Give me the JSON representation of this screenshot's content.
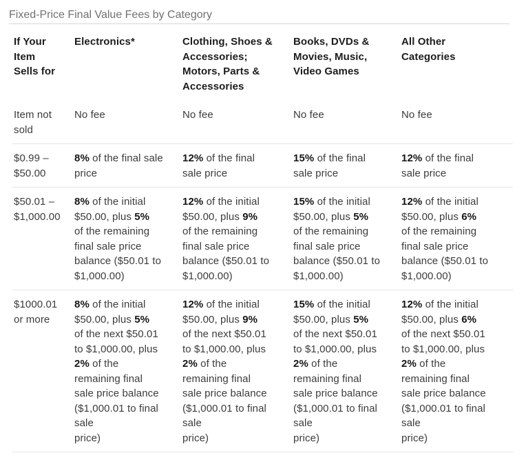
{
  "title": "Fixed-Price Final Value Fees by Category",
  "table": {
    "headers": [
      "If Your\nItem\nSells for",
      "Electronics*",
      "Clothing, Shoes &\nAccessories;\nMotors, Parts &\nAccessories",
      "Books, DVDs &\nMovies, Music,\nVideo Games",
      "All Other\nCategories"
    ],
    "rows": [
      {
        "range": "Item not\nsold",
        "cells": [
          [
            {
              "t": "No fee"
            }
          ],
          [
            {
              "t": "No fee"
            }
          ],
          [
            {
              "t": "No fee"
            }
          ],
          [
            {
              "t": "No fee"
            }
          ]
        ]
      },
      {
        "range": "$0.99 –\n$50.00",
        "cells": [
          [
            {
              "t": "8%",
              "b": true
            },
            {
              "t": " of the final sale\nprice"
            }
          ],
          [
            {
              "t": "12%",
              "b": true
            },
            {
              "t": " of the final\nsale price"
            }
          ],
          [
            {
              "t": "15%",
              "b": true
            },
            {
              "t": " of the final\nsale price"
            }
          ],
          [
            {
              "t": "12%",
              "b": true
            },
            {
              "t": " of the final\nsale price"
            }
          ]
        ]
      },
      {
        "range": "$50.01 –\n$1,000.00",
        "cells": [
          [
            {
              "t": "8%",
              "b": true
            },
            {
              "t": " of the initial\n$50.00, plus "
            },
            {
              "t": "5%",
              "b": true
            },
            {
              "t": "\nof the remaining\nfinal sale price\nbalance ($50.01 to\n$1,000.00)"
            }
          ],
          [
            {
              "t": "12%",
              "b": true
            },
            {
              "t": " of the initial\n$50.00, plus "
            },
            {
              "t": "9%",
              "b": true
            },
            {
              "t": "\nof the remaining\nfinal sale price\nbalance ($50.01 to\n$1,000.00)"
            }
          ],
          [
            {
              "t": "15%",
              "b": true
            },
            {
              "t": " of the initial\n$50.00, plus "
            },
            {
              "t": "5%",
              "b": true
            },
            {
              "t": "\nof the remaining\nfinal sale price\nbalance ($50.01 to\n$1,000.00)"
            }
          ],
          [
            {
              "t": "12%",
              "b": true
            },
            {
              "t": " of the initial\n$50.00, plus "
            },
            {
              "t": "6%",
              "b": true
            },
            {
              "t": "\nof the remaining\nfinal sale price\nbalance ($50.01 to\n$1,000.00)"
            }
          ]
        ]
      },
      {
        "range": "$1000.01\nor more",
        "cells": [
          [
            {
              "t": "8%",
              "b": true
            },
            {
              "t": " of the initial\n$50.00, plus "
            },
            {
              "t": "5%",
              "b": true
            },
            {
              "t": "\nof the next $50.01\nto $1,000.00, plus\n"
            },
            {
              "t": "2%",
              "b": true
            },
            {
              "t": " of the\nremaining final\nsale price balance\n($1,000.01 to final\nsale\nprice)"
            }
          ],
          [
            {
              "t": "12%",
              "b": true
            },
            {
              "t": " of the initial\n$50.00, plus "
            },
            {
              "t": "9%",
              "b": true
            },
            {
              "t": "\nof the next $50.01\nto $1,000.00, plus\n"
            },
            {
              "t": "2%",
              "b": true
            },
            {
              "t": " of the\nremaining final\nsale price balance\n($1,000.01 to final\nsale\nprice)"
            }
          ],
          [
            {
              "t": "15%",
              "b": true
            },
            {
              "t": " of the initial\n$50.00, plus "
            },
            {
              "t": "5%",
              "b": true
            },
            {
              "t": "\nof the next $50.01\nto $1,000.00, plus\n"
            },
            {
              "t": "2%",
              "b": true
            },
            {
              "t": " of the\nremaining final\nsale price balance\n($1,000.01 to final\nsale\nprice)"
            }
          ],
          [
            {
              "t": "12%",
              "b": true
            },
            {
              "t": " of the initial\n$50.00, plus "
            },
            {
              "t": "6%",
              "b": true
            },
            {
              "t": "\nof the next $50.01\nto $1,000.00, plus\n"
            },
            {
              "t": "2%",
              "b": true
            },
            {
              "t": " of the\nremaining final\nsale price balance\n($1,000.01 to final\nsale\nprice)"
            }
          ]
        ]
      }
    ]
  }
}
